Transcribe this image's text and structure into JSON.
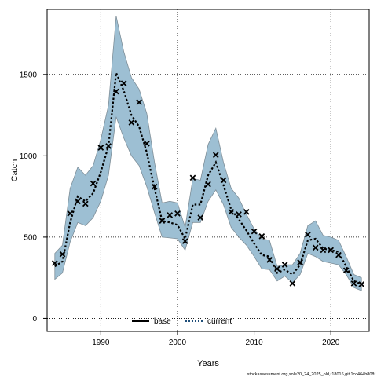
{
  "chart_data": {
    "type": "line",
    "title": "",
    "xlabel": "Years",
    "ylabel": "Catch",
    "xlim": [
      1983,
      2025
    ],
    "ylim": [
      -80,
      1900
    ],
    "x_ticks": [
      1990,
      2000,
      2010,
      2020
    ],
    "y_ticks": [
      0,
      500,
      1000,
      1500
    ],
    "grid": true,
    "legend_position": "bottom-center",
    "colors": {
      "band": "#9dbfd3",
      "band_edge": "#7f8f99",
      "current": "#1f4e79",
      "base": "#000000"
    },
    "years": [
      1984,
      1985,
      1986,
      1987,
      1988,
      1989,
      1990,
      1991,
      1992,
      1993,
      1994,
      1995,
      1996,
      1997,
      1998,
      1999,
      2000,
      2001,
      2002,
      2003,
      2004,
      2005,
      2006,
      2007,
      2008,
      2009,
      2010,
      2011,
      2012,
      2013,
      2014,
      2015,
      2016,
      2017,
      2018,
      2019,
      2020,
      2021,
      2022,
      2023,
      2024
    ],
    "band": {
      "lower": [
        240,
        280,
        470,
        590,
        570,
        620,
        720,
        880,
        1240,
        1110,
        1000,
        940,
        810,
        650,
        500,
        495,
        490,
        420,
        590,
        590,
        720,
        790,
        700,
        560,
        500,
        450,
        380,
        305,
        300,
        230,
        260,
        220,
        270,
        400,
        380,
        350,
        340,
        330,
        270,
        190,
        170
      ],
      "upper": [
        400,
        450,
        800,
        930,
        880,
        940,
        1100,
        1310,
        1860,
        1640,
        1480,
        1410,
        1260,
        960,
        710,
        720,
        710,
        560,
        860,
        850,
        1070,
        1170,
        960,
        800,
        740,
        640,
        550,
        490,
        480,
        320,
        330,
        330,
        400,
        570,
        600,
        510,
        500,
        480,
        380,
        270,
        250
      ]
    },
    "series": [
      {
        "name": "base",
        "style": "solid",
        "values": []
      },
      {
        "name": "current",
        "style": "dotted",
        "values": [
          320,
          350,
          590,
          750,
          720,
          770,
          900,
          1060,
          1510,
          1400,
          1250,
          1180,
          1020,
          800,
          600,
          590,
          575,
          490,
          700,
          700,
          880,
          960,
          820,
          670,
          610,
          540,
          460,
          390,
          380,
          280,
          300,
          270,
          330,
          480,
          490,
          430,
          420,
          410,
          320,
          230,
          210
        ]
      }
    ],
    "observed_marker": "x",
    "observed": [
      340,
      395,
      645,
      720,
      705,
      830,
      1050,
      1060,
      1395,
      1445,
      1205,
      1330,
      1075,
      810,
      600,
      635,
      645,
      475,
      865,
      620,
      825,
      1005,
      850,
      655,
      640,
      655,
      535,
      505,
      360,
      305,
      330,
      215,
      345,
      515,
      435,
      420,
      420,
      390,
      295,
      215,
      210
    ],
    "footer": "stockassessment.org,sole20_24_2025_old,r18016,git:1cc464b808f"
  }
}
